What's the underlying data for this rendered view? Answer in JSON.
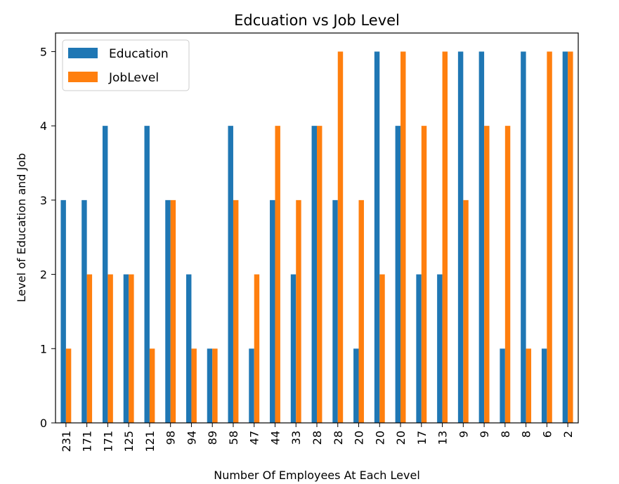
{
  "chart_data": {
    "type": "bar",
    "title": "Edcuation vs Job Level",
    "xlabel": "Number Of Employees At Each Level",
    "ylabel": "Level of Education and Job",
    "ylim": [
      0,
      5.25
    ],
    "yticks": [
      "0",
      "1",
      "2",
      "3",
      "4",
      "5"
    ],
    "categories": [
      "231",
      "171",
      "171",
      "125",
      "121",
      "98",
      "94",
      "89",
      "58",
      "47",
      "44",
      "33",
      "28",
      "28",
      "20",
      "20",
      "20",
      "17",
      "13",
      "9",
      "9",
      "8",
      "8",
      "6",
      "2"
    ],
    "series": [
      {
        "name": "Education",
        "color": "#1f77b4",
        "values": [
          3,
          3,
          4,
          2,
          4,
          3,
          2,
          1,
          4,
          1,
          3,
          2,
          4,
          3,
          1,
          5,
          4,
          2,
          2,
          5,
          5,
          1,
          5,
          1,
          5
        ]
      },
      {
        "name": "JobLevel",
        "color": "#ff7f0e",
        "values": [
          1,
          2,
          2,
          2,
          1,
          3,
          1,
          1,
          3,
          2,
          4,
          3,
          4,
          5,
          3,
          2,
          5,
          4,
          5,
          3,
          4,
          4,
          1,
          5,
          5
        ]
      }
    ],
    "legend_position": "upper-left",
    "grid": false
  }
}
